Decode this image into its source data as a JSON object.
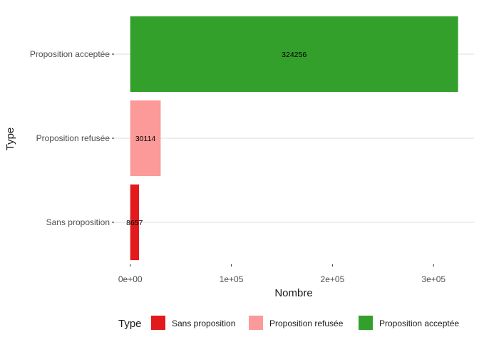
{
  "chart_data": {
    "type": "bar",
    "orientation": "horizontal",
    "categories": [
      "Sans proposition",
      "Proposition refusée",
      "Proposition acceptée"
    ],
    "values": [
      8657,
      30114,
      324256
    ],
    "data_labels": [
      "8657",
      "30114",
      "324256"
    ],
    "colors": [
      "#e31a1c",
      "#fb9a99",
      "#33a02c"
    ],
    "xlabel": "Nombre",
    "ylabel": "Type",
    "xlim": [
      -16000,
      340000
    ],
    "xticks": [
      0,
      100000,
      200000,
      300000
    ],
    "xtick_labels": [
      "0e+00",
      "1e+05",
      "2e+05",
      "3e+05"
    ],
    "grid": true,
    "legend": {
      "title": "Type",
      "position": "bottom",
      "items": [
        "Sans proposition",
        "Proposition refusée",
        "Proposition acceptée"
      ]
    }
  }
}
